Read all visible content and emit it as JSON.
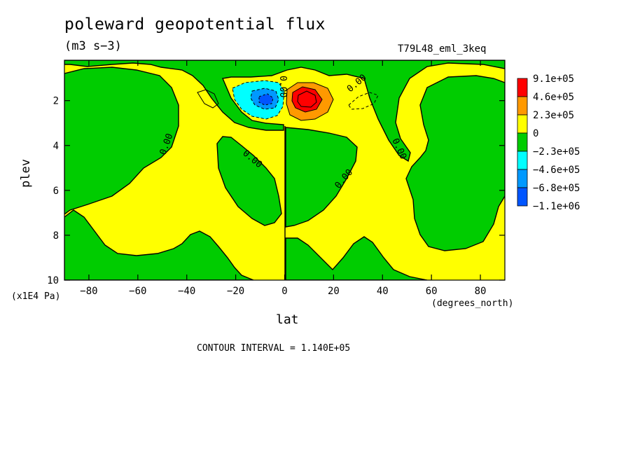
{
  "title": "poleward geopotential flux",
  "units": "(m3 s−3)",
  "case_name": "T79L48_eml_3keq",
  "y_unit_label": "(x1E4 Pa)",
  "x_unit_label": "(degrees_north)",
  "contour_interval_text": "CONTOUR INTERVAL = 1.140E+05",
  "chart_data": {
    "type": "heatmap",
    "xlabel": "lat",
    "ylabel": "plev",
    "xlim": [
      -90,
      90
    ],
    "ylim": [
      10,
      0.2
    ],
    "x_ticks": [
      -80,
      -60,
      -40,
      -20,
      0,
      20,
      40,
      60,
      80
    ],
    "y_ticks": [
      2,
      4,
      6,
      8,
      10
    ],
    "contour_labels": [
      "0.00",
      "0.00",
      "0.00",
      "0.00",
      "0.00",
      "0.00"
    ],
    "colorbar": {
      "placement": "right",
      "levels": [
        {
          "label": "9.1e+05",
          "color": "#ff0000"
        },
        {
          "label": "4.6e+05",
          "color": "#ff9900"
        },
        {
          "label": "2.3e+05",
          "color": "#ffff00"
        },
        {
          "label": "0",
          "color": "#00cc00"
        },
        {
          "label": "−2.3e+05",
          "color": "#00ffff"
        },
        {
          "label": "−4.6e+05",
          "color": "#0099ff"
        },
        {
          "label": "−6.8e+05",
          "color": "#0055ff"
        },
        {
          "label": "−1.1e+06",
          "color": "#0055ff"
        }
      ],
      "swatches": [
        "#ff0000",
        "#ff9900",
        "#ffff00",
        "#00cc00",
        "#00ffff",
        "#0099ff",
        "#0055ff"
      ]
    },
    "colors": {
      "positive": "#ffff00",
      "negative": "#00cc00",
      "strong_positive": "#ff9900",
      "peak_positive": "#ff0000",
      "strong_negative": "#00ffff",
      "peak_negative": "#0099ff",
      "extreme_negative": "#0055ff"
    }
  }
}
